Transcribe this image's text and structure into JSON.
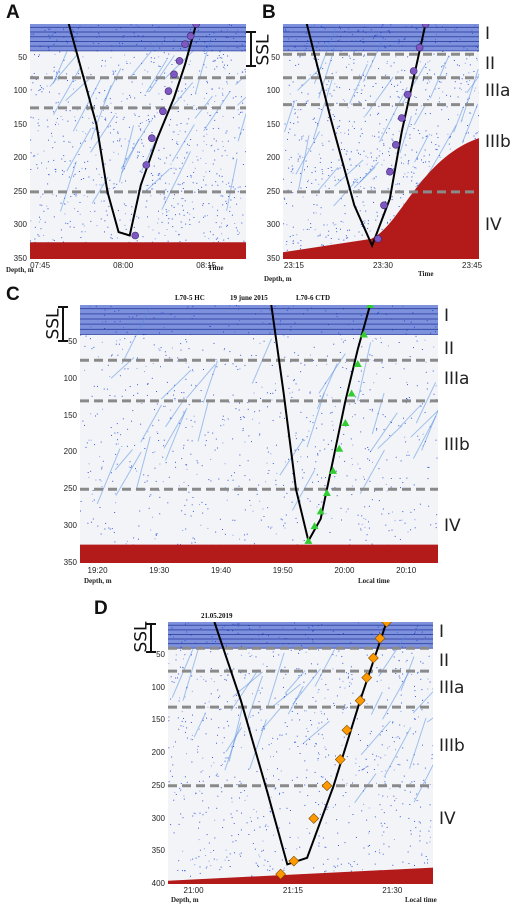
{
  "chart_data": [
    {
      "type": "scatter",
      "panel": "A",
      "ylabel": "Depth, m",
      "xlabel": "Time",
      "ylim": [
        0,
        350
      ],
      "y_ticks": [
        "50",
        "100",
        "150",
        "200",
        "250",
        "300",
        "350"
      ],
      "x_ticks": [
        "07:45",
        "08:00",
        "08:15"
      ],
      "boundaries_m": [
        80,
        125,
        250
      ],
      "ssl_label": "SSL",
      "zones": [],
      "track": {
        "x": [
          "07:50",
          "07:55",
          "07:57",
          "07:59",
          "08:01",
          "08:03",
          "08:06",
          "08:09",
          "08:11",
          "08:13"
        ],
        "y": [
          0,
          150,
          250,
          310,
          315,
          240,
          170,
          110,
          60,
          0
        ]
      },
      "markers": {
        "x": [
          "08:02",
          "08:04",
          "08:05",
          "08:07",
          "08:08",
          "08:09",
          "08:10",
          "08:11",
          "08:12",
          "08:13"
        ],
        "y": [
          315,
          210,
          170,
          130,
          100,
          75,
          55,
          30,
          18,
          0
        ]
      },
      "marker_color": "#7e57c2"
    },
    {
      "type": "scatter",
      "panel": "B",
      "ylabel": "Depth, m",
      "xlabel": "Time",
      "ylim": [
        0,
        350
      ],
      "y_ticks": [
        "50",
        "100",
        "150",
        "200",
        "250",
        "300",
        "350"
      ],
      "x_ticks": [
        "23:15",
        "23:30",
        "23:45"
      ],
      "boundaries_m": [
        45,
        80,
        120,
        250
      ],
      "ssl_label": "",
      "zones": [
        "I",
        "II",
        "IIIa",
        "IIIb",
        "IV"
      ],
      "track": {
        "x": [
          "23:17",
          "23:21",
          "23:25",
          "23:28",
          "23:31",
          "23:33",
          "23:35",
          "23:37"
        ],
        "y": [
          0,
          140,
          270,
          330,
          260,
          160,
          80,
          0
        ]
      },
      "markers": {
        "x": [
          "23:29",
          "23:30",
          "23:31",
          "23:32",
          "23:33",
          "23:34",
          "23:35",
          "23:36",
          "23:37"
        ],
        "y": [
          320,
          270,
          220,
          180,
          140,
          105,
          70,
          35,
          0
        ]
      },
      "marker_color": "#7e57c2"
    },
    {
      "type": "scatter",
      "panel": "C",
      "title_left": "L70-5 HC",
      "title_center": "19 june 2015",
      "title_right": "L70-6 CTD",
      "ylabel": "Depth, m",
      "xlabel": "Local time",
      "ylim": [
        0,
        350
      ],
      "y_ticks": [
        "50",
        "100",
        "150",
        "200",
        "250",
        "300",
        "350"
      ],
      "x_ticks": [
        "19:20",
        "19:30",
        "19:40",
        "19:50",
        "20:00",
        "20:10"
      ],
      "boundaries_m": [
        75,
        130,
        250
      ],
      "ssl_label": "SSL",
      "zones": [
        "I",
        "II",
        "IIIa",
        "IIIb",
        "IV"
      ],
      "track": {
        "x": [
          "19:48",
          "19:50",
          "19:52",
          "19:54",
          "19:56",
          "19:58",
          "20:00",
          "20:02",
          "20:04"
        ],
        "y": [
          0,
          120,
          250,
          320,
          290,
          210,
          130,
          60,
          0
        ]
      },
      "markers": {
        "x": [
          "19:54",
          "19:55",
          "19:56",
          "19:57",
          "19:58",
          "19:59",
          "20:00",
          "20:01",
          "20:02",
          "20:03",
          "20:04"
        ],
        "y": [
          320,
          300,
          280,
          255,
          225,
          195,
          160,
          120,
          80,
          40,
          0
        ]
      },
      "marker_color": "#33cc33"
    },
    {
      "type": "scatter",
      "panel": "D",
      "title_left": "21.05.2019",
      "ylabel": "Depth, m",
      "xlabel": "Local time",
      "ylim": [
        0,
        400
      ],
      "y_ticks": [
        "50",
        "100",
        "150",
        "200",
        "250",
        "300",
        "350",
        "400"
      ],
      "x_ticks": [
        "21:00",
        "21:15",
        "21:30"
      ],
      "boundaries_m": [
        40,
        75,
        130,
        250
      ],
      "ssl_label": "SSL",
      "zones": [
        "I",
        "II",
        "IIIa",
        "IIIb",
        "IV"
      ],
      "track": {
        "x": [
          "21:03",
          "21:07",
          "21:11",
          "21:14",
          "21:17",
          "21:21",
          "21:25",
          "21:29"
        ],
        "y": [
          0,
          120,
          260,
          370,
          360,
          250,
          120,
          0
        ]
      },
      "markers": {
        "x": [
          "21:13",
          "21:15",
          "21:18",
          "21:20",
          "21:22",
          "21:23",
          "21:25",
          "21:26",
          "21:27",
          "21:28",
          "21:29"
        ],
        "y": [
          385,
          365,
          300,
          250,
          210,
          165,
          120,
          85,
          55,
          25,
          0
        ]
      },
      "marker_color": "#ff9900"
    }
  ]
}
